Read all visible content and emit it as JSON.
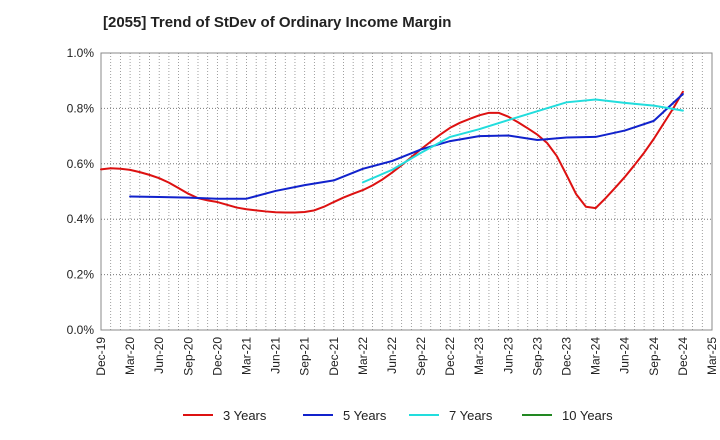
{
  "chart_data": {
    "type": "line",
    "title": "[2055]  Trend of StDev of Ordinary Income Margin",
    "xlabel": "",
    "ylabel": "",
    "x_ticks": [
      "Dec-19",
      "Mar-20",
      "Jun-20",
      "Sep-20",
      "Dec-20",
      "Mar-21",
      "Jun-21",
      "Sep-21",
      "Dec-21",
      "Mar-22",
      "Jun-22",
      "Sep-22",
      "Dec-22",
      "Mar-23",
      "Jun-23",
      "Sep-23",
      "Dec-23",
      "Mar-24",
      "Jun-24",
      "Sep-24",
      "Dec-24",
      "Mar-25"
    ],
    "y_ticks": [
      "0.0%",
      "0.2%",
      "0.4%",
      "0.6%",
      "0.8%",
      "1.0%"
    ],
    "ylim": [
      0,
      1.0
    ],
    "y_unit": "%",
    "grid": true,
    "legend_position": "bottom",
    "series": [
      {
        "name": "3 Years",
        "color": "#dd1111",
        "x": [
          "Dec-19",
          "Jan-20",
          "Feb-20",
          "Mar-20",
          "Apr-20",
          "May-20",
          "Jun-20",
          "Jul-20",
          "Aug-20",
          "Sep-20",
          "Oct-20",
          "Nov-20",
          "Dec-20",
          "Jan-21",
          "Feb-21",
          "Mar-21",
          "Apr-21",
          "May-21",
          "Jun-21",
          "Jul-21",
          "Aug-21",
          "Sep-21",
          "Oct-21",
          "Nov-21",
          "Dec-21",
          "Jan-22",
          "Feb-22",
          "Mar-22",
          "Apr-22",
          "May-22",
          "Jun-22",
          "Jul-22",
          "Aug-22",
          "Sep-22",
          "Oct-22",
          "Nov-22",
          "Dec-22",
          "Jan-23",
          "Feb-23",
          "Mar-23",
          "Apr-23",
          "May-23",
          "Jun-23",
          "Jul-23",
          "Aug-23",
          "Sep-23",
          "Oct-23",
          "Nov-23",
          "Dec-23",
          "Jan-24",
          "Feb-24",
          "Mar-24",
          "Apr-24",
          "May-24",
          "Jun-24",
          "Jul-24",
          "Aug-24",
          "Sep-24",
          "Oct-24",
          "Nov-24",
          "Dec-24"
        ],
        "values": [
          0.58,
          0.584,
          0.582,
          0.578,
          0.57,
          0.56,
          0.548,
          0.532,
          0.512,
          0.492,
          0.476,
          0.468,
          0.462,
          0.452,
          0.442,
          0.436,
          0.432,
          0.428,
          0.425,
          0.424,
          0.424,
          0.426,
          0.432,
          0.445,
          0.462,
          0.478,
          0.492,
          0.505,
          0.522,
          0.543,
          0.568,
          0.595,
          0.624,
          0.653,
          0.68,
          0.706,
          0.73,
          0.748,
          0.762,
          0.775,
          0.784,
          0.784,
          0.77,
          0.75,
          0.728,
          0.705,
          0.675,
          0.628,
          0.56,
          0.49,
          0.445,
          0.44,
          0.475,
          0.513,
          0.552,
          0.595,
          0.64,
          0.69,
          0.745,
          0.8,
          0.86
        ]
      },
      {
        "name": "5 Years",
        "color": "#1122cc",
        "x": [
          "Mar-20",
          "Jun-20",
          "Sep-20",
          "Dec-20",
          "Mar-21",
          "Jun-21",
          "Sep-21",
          "Dec-21",
          "Mar-22",
          "Jun-22",
          "Sep-22",
          "Dec-22",
          "Mar-23",
          "Jun-23",
          "Sep-23",
          "Dec-23",
          "Mar-24",
          "Jun-24",
          "Sep-24",
          "Dec-24"
        ],
        "values": [
          0.482,
          0.48,
          0.478,
          0.474,
          0.474,
          0.502,
          0.523,
          0.54,
          0.582,
          0.61,
          0.652,
          0.682,
          0.7,
          0.702,
          0.686,
          0.695,
          0.697,
          0.72,
          0.755,
          0.852
        ]
      },
      {
        "name": "7 Years",
        "color": "#22dddd",
        "x": [
          "Mar-22",
          "Jun-22",
          "Sep-22",
          "Dec-22",
          "Mar-23",
          "Jun-23",
          "Sep-23",
          "Dec-23",
          "Mar-24",
          "Jun-24",
          "Sep-24",
          "Dec-24"
        ],
        "values": [
          0.533,
          0.578,
          0.64,
          0.697,
          0.725,
          0.758,
          0.79,
          0.822,
          0.832,
          0.82,
          0.81,
          0.792
        ]
      },
      {
        "name": "10 Years",
        "color": "#228822",
        "x": [],
        "values": []
      }
    ]
  }
}
